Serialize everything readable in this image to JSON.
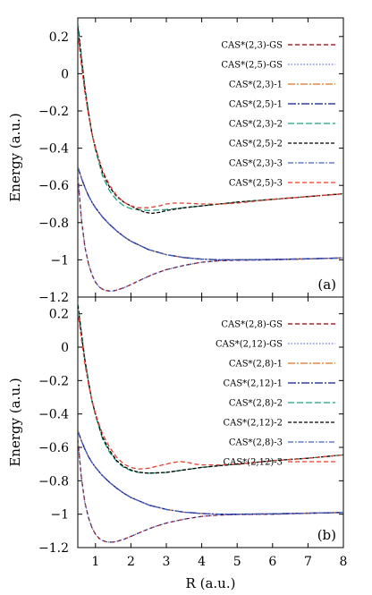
{
  "chart_data": [
    {
      "type": "line",
      "panel_label": "(a)",
      "xlabel": "",
      "ylabel": "Energy (a.u.)",
      "xlim": [
        0.5,
        8
      ],
      "ylim": [
        -1.2,
        0.3
      ],
      "xticks": [],
      "yticks": [
        {
          "value": 0.2,
          "label": "0.2"
        },
        {
          "value": 0,
          "label": "0"
        },
        {
          "value": -0.2,
          "label": "−0.2"
        },
        {
          "value": -0.4,
          "label": "−0.4"
        },
        {
          "value": -0.6,
          "label": "−0.6"
        },
        {
          "value": -0.8,
          "label": "−0.8"
        },
        {
          "value": -1.0,
          "label": "−1"
        },
        {
          "value": -1.2,
          "label": "−1.2"
        }
      ],
      "legend_position": "top-right",
      "series": [
        {
          "name": "CAS*(2,3)-GS",
          "color": "#8b0000",
          "dash": "5,3",
          "x": [
            0.5,
            0.6,
            0.7,
            0.8,
            0.9,
            1.0,
            1.1,
            1.2,
            1.3,
            1.4,
            1.5,
            1.6,
            1.8,
            2.0,
            2.2,
            2.4,
            2.6,
            2.8,
            3.0,
            3.5,
            4.0,
            4.5,
            5.0,
            5.5,
            6.0,
            7.0,
            8.0
          ],
          "y": [
            -0.55,
            -0.78,
            -0.93,
            -1.02,
            -1.08,
            -1.12,
            -1.145,
            -1.158,
            -1.165,
            -1.168,
            -1.167,
            -1.163,
            -1.15,
            -1.133,
            -1.115,
            -1.097,
            -1.08,
            -1.066,
            -1.053,
            -1.03,
            -1.013,
            -1.005,
            -1.002,
            -1.001,
            -1.0,
            -0.995,
            -0.99
          ]
        },
        {
          "name": "CAS*(2,5)-GS",
          "color": "#5b6fd6",
          "dash": "1.5,2",
          "x": [
            0.5,
            0.6,
            0.7,
            0.8,
            0.9,
            1.0,
            1.1,
            1.2,
            1.3,
            1.4,
            1.5,
            1.6,
            1.8,
            2.0,
            2.2,
            2.4,
            2.6,
            2.8,
            3.0,
            3.5,
            4.0,
            4.5,
            5.0,
            5.5,
            6.0,
            7.0,
            8.0
          ],
          "y": [
            -0.55,
            -0.78,
            -0.93,
            -1.02,
            -1.08,
            -1.12,
            -1.145,
            -1.158,
            -1.165,
            -1.168,
            -1.167,
            -1.163,
            -1.15,
            -1.133,
            -1.115,
            -1.097,
            -1.08,
            -1.066,
            -1.053,
            -1.03,
            -1.013,
            -1.005,
            -1.002,
            -1.001,
            -1.0,
            -0.995,
            -0.99
          ]
        },
        {
          "name": "CAS*(2,3)-1",
          "color": "#e07020",
          "dash": "8,2,2,2",
          "x": [
            0.5,
            0.6,
            0.7,
            0.8,
            0.9,
            1.0,
            1.2,
            1.4,
            1.6,
            1.8,
            2.0,
            2.5,
            3.0,
            3.5,
            4.0,
            4.5,
            5.0,
            6.0,
            7.0,
            8.0
          ],
          "y": [
            -0.5,
            -0.56,
            -0.61,
            -0.655,
            -0.69,
            -0.72,
            -0.77,
            -0.81,
            -0.845,
            -0.875,
            -0.9,
            -0.945,
            -0.972,
            -0.988,
            -0.996,
            -1.0,
            -1.0,
            -0.998,
            -0.994,
            -0.99
          ]
        },
        {
          "name": "CAS*(2,5)-1",
          "color": "#0a1a8a",
          "dash": "9,2,2,2",
          "x": [
            0.5,
            0.6,
            0.7,
            0.8,
            0.9,
            1.0,
            1.2,
            1.4,
            1.6,
            1.8,
            2.0,
            2.5,
            3.0,
            3.5,
            4.0,
            4.5,
            5.0,
            6.0,
            7.0,
            8.0
          ],
          "y": [
            -0.5,
            -0.56,
            -0.61,
            -0.655,
            -0.69,
            -0.72,
            -0.77,
            -0.81,
            -0.845,
            -0.875,
            -0.9,
            -0.945,
            -0.972,
            -0.988,
            -0.996,
            -1.0,
            -1.0,
            -0.998,
            -0.994,
            -0.99
          ]
        },
        {
          "name": "CAS*(2,3)-2",
          "color": "#20a080",
          "dash": "7,3",
          "x": [
            0.5,
            0.6,
            0.7,
            0.8,
            0.9,
            1.0,
            1.2,
            1.4,
            1.6,
            1.8,
            2.0,
            2.2,
            2.5,
            3.0,
            3.5,
            4.0,
            4.5,
            5.0,
            6.0,
            7.0,
            8.0
          ],
          "y": [
            0.28,
            0.1,
            -0.07,
            -0.2,
            -0.32,
            -0.41,
            -0.55,
            -0.63,
            -0.68,
            -0.71,
            -0.725,
            -0.73,
            -0.735,
            -0.73,
            -0.72,
            -0.71,
            -0.7,
            -0.69,
            -0.675,
            -0.66,
            -0.645
          ]
        },
        {
          "name": "CAS*(2,5)-2",
          "color": "#000000",
          "dash": "4,2",
          "x": [
            0.5,
            0.6,
            0.7,
            0.8,
            0.9,
            1.0,
            1.2,
            1.4,
            1.6,
            1.8,
            2.0,
            2.2,
            2.4,
            2.6,
            2.8,
            3.0,
            3.5,
            4.0,
            4.5,
            5.0,
            6.0,
            7.0,
            8.0
          ],
          "y": [
            0.25,
            0.08,
            -0.08,
            -0.21,
            -0.32,
            -0.4,
            -0.53,
            -0.61,
            -0.66,
            -0.69,
            -0.71,
            -0.73,
            -0.745,
            -0.75,
            -0.745,
            -0.735,
            -0.72,
            -0.71,
            -0.7,
            -0.69,
            -0.675,
            -0.66,
            -0.645
          ]
        },
        {
          "name": "CAS*(2,3)-3",
          "color": "#4060c0",
          "dash": "6,2,1.5,2",
          "x": [
            0.5,
            0.6,
            0.7,
            0.8,
            0.9,
            1.0,
            1.2,
            1.4,
            1.6,
            1.8,
            2.0,
            2.5,
            3.0,
            3.5,
            4.0,
            4.5,
            5.0,
            6.0,
            7.0,
            8.0
          ],
          "y": [
            -0.5,
            -0.56,
            -0.61,
            -0.655,
            -0.69,
            -0.72,
            -0.77,
            -0.81,
            -0.845,
            -0.875,
            -0.9,
            -0.945,
            -0.972,
            -0.988,
            -0.996,
            -1.0,
            -1.0,
            -0.998,
            -0.994,
            -0.99
          ]
        },
        {
          "name": "CAS*(2,5)-3",
          "color": "#e04030",
          "dash": "5,3",
          "x": [
            0.5,
            0.6,
            0.7,
            0.8,
            0.9,
            1.0,
            1.2,
            1.4,
            1.6,
            1.8,
            2.0,
            2.2,
            2.5,
            2.8,
            3.0,
            3.2,
            3.5,
            4.0,
            4.5,
            5.0,
            6.0,
            7.0,
            8.0
          ],
          "y": [
            0.22,
            0.05,
            -0.1,
            -0.22,
            -0.32,
            -0.4,
            -0.52,
            -0.6,
            -0.655,
            -0.69,
            -0.71,
            -0.72,
            -0.72,
            -0.71,
            -0.7,
            -0.695,
            -0.695,
            -0.7,
            -0.7,
            -0.695,
            -0.675,
            -0.66,
            -0.645
          ]
        }
      ]
    },
    {
      "type": "line",
      "panel_label": "(b)",
      "xlabel": "R (a.u.)",
      "ylabel": "Energy (a.u.)",
      "xlim": [
        0.5,
        8
      ],
      "ylim": [
        -1.2,
        0.3
      ],
      "xticks": [
        {
          "value": 1,
          "label": "1"
        },
        {
          "value": 2,
          "label": "2"
        },
        {
          "value": 3,
          "label": "3"
        },
        {
          "value": 4,
          "label": "4"
        },
        {
          "value": 5,
          "label": "5"
        },
        {
          "value": 6,
          "label": "6"
        },
        {
          "value": 7,
          "label": "7"
        },
        {
          "value": 8,
          "label": "8"
        }
      ],
      "yticks": [
        {
          "value": 0.2,
          "label": "0.2"
        },
        {
          "value": 0,
          "label": "0"
        },
        {
          "value": -0.2,
          "label": "−0.2"
        },
        {
          "value": -0.4,
          "label": "−0.4"
        },
        {
          "value": -0.6,
          "label": "−0.6"
        },
        {
          "value": -0.8,
          "label": "−0.8"
        },
        {
          "value": -1.0,
          "label": "−1"
        },
        {
          "value": -1.2,
          "label": "−1.2"
        }
      ],
      "legend_position": "top-right",
      "series": [
        {
          "name": "CAS*(2,8)-GS",
          "color": "#8b0000",
          "dash": "5,3",
          "x": [
            0.5,
            0.6,
            0.7,
            0.8,
            0.9,
            1.0,
            1.1,
            1.2,
            1.3,
            1.4,
            1.5,
            1.6,
            1.8,
            2.0,
            2.2,
            2.4,
            2.6,
            2.8,
            3.0,
            3.5,
            4.0,
            4.5,
            5.0,
            5.5,
            6.0,
            7.0,
            8.0
          ],
          "y": [
            -0.55,
            -0.78,
            -0.93,
            -1.02,
            -1.08,
            -1.12,
            -1.145,
            -1.158,
            -1.165,
            -1.168,
            -1.167,
            -1.163,
            -1.15,
            -1.133,
            -1.115,
            -1.097,
            -1.08,
            -1.066,
            -1.053,
            -1.03,
            -1.013,
            -1.005,
            -1.002,
            -1.001,
            -1.0,
            -0.995,
            -0.99
          ]
        },
        {
          "name": "CAS*(2,12)-GS",
          "color": "#5b6fd6",
          "dash": "1.5,2",
          "x": [
            0.5,
            0.6,
            0.7,
            0.8,
            0.9,
            1.0,
            1.1,
            1.2,
            1.3,
            1.4,
            1.5,
            1.6,
            1.8,
            2.0,
            2.2,
            2.4,
            2.6,
            2.8,
            3.0,
            3.5,
            4.0,
            4.5,
            5.0,
            5.5,
            6.0,
            7.0,
            8.0
          ],
          "y": [
            -0.55,
            -0.78,
            -0.93,
            -1.02,
            -1.08,
            -1.12,
            -1.145,
            -1.158,
            -1.165,
            -1.168,
            -1.167,
            -1.163,
            -1.15,
            -1.133,
            -1.115,
            -1.097,
            -1.08,
            -1.066,
            -1.053,
            -1.03,
            -1.013,
            -1.005,
            -1.002,
            -1.001,
            -1.0,
            -0.995,
            -0.99
          ]
        },
        {
          "name": "CAS*(2,8)-1",
          "color": "#e07020",
          "dash": "8,2,2,2",
          "x": [
            0.5,
            0.6,
            0.7,
            0.8,
            0.9,
            1.0,
            1.2,
            1.4,
            1.6,
            1.8,
            2.0,
            2.5,
            3.0,
            3.5,
            4.0,
            4.5,
            5.0,
            6.0,
            7.0,
            8.0
          ],
          "y": [
            -0.5,
            -0.56,
            -0.61,
            -0.655,
            -0.69,
            -0.72,
            -0.77,
            -0.81,
            -0.845,
            -0.875,
            -0.9,
            -0.945,
            -0.972,
            -0.988,
            -0.996,
            -1.0,
            -1.0,
            -0.998,
            -0.994,
            -0.99
          ]
        },
        {
          "name": "CAS*(2,12)-1",
          "color": "#0a1a8a",
          "dash": "9,2,2,2",
          "x": [
            0.5,
            0.6,
            0.7,
            0.8,
            0.9,
            1.0,
            1.2,
            1.4,
            1.6,
            1.8,
            2.0,
            2.5,
            3.0,
            3.5,
            4.0,
            4.5,
            5.0,
            6.0,
            7.0,
            8.0
          ],
          "y": [
            -0.5,
            -0.56,
            -0.61,
            -0.655,
            -0.69,
            -0.72,
            -0.77,
            -0.81,
            -0.845,
            -0.875,
            -0.9,
            -0.945,
            -0.972,
            -0.988,
            -0.996,
            -1.0,
            -1.0,
            -0.998,
            -0.994,
            -0.99
          ]
        },
        {
          "name": "CAS*(2,8)-2",
          "color": "#20a080",
          "dash": "7,3",
          "x": [
            0.5,
            0.6,
            0.7,
            0.8,
            0.9,
            1.0,
            1.2,
            1.4,
            1.6,
            1.8,
            2.0,
            2.2,
            2.5,
            3.0,
            3.5,
            4.0,
            4.5,
            5.0,
            6.0,
            7.0,
            8.0
          ],
          "y": [
            0.27,
            0.09,
            -0.07,
            -0.2,
            -0.32,
            -0.41,
            -0.55,
            -0.63,
            -0.685,
            -0.72,
            -0.74,
            -0.75,
            -0.755,
            -0.75,
            -0.735,
            -0.72,
            -0.71,
            -0.7,
            -0.68,
            -0.665,
            -0.645
          ]
        },
        {
          "name": "CAS*(2,12)-2",
          "color": "#000000",
          "dash": "4,2",
          "x": [
            0.5,
            0.6,
            0.7,
            0.8,
            0.9,
            1.0,
            1.2,
            1.4,
            1.6,
            1.8,
            2.0,
            2.2,
            2.5,
            3.0,
            3.5,
            4.0,
            4.5,
            5.0,
            6.0,
            7.0,
            8.0
          ],
          "y": [
            0.25,
            0.08,
            -0.08,
            -0.21,
            -0.32,
            -0.4,
            -0.54,
            -0.62,
            -0.68,
            -0.715,
            -0.735,
            -0.748,
            -0.755,
            -0.75,
            -0.735,
            -0.72,
            -0.71,
            -0.7,
            -0.68,
            -0.665,
            -0.645
          ]
        },
        {
          "name": "CAS*(2,8)-3",
          "color": "#4060c0",
          "dash": "6,2,1.5,2",
          "x": [
            0.5,
            0.6,
            0.7,
            0.8,
            0.9,
            1.0,
            1.2,
            1.4,
            1.6,
            1.8,
            2.0,
            2.5,
            3.0,
            3.5,
            4.0,
            4.5,
            5.0,
            6.0,
            7.0,
            8.0
          ],
          "y": [
            -0.5,
            -0.56,
            -0.61,
            -0.655,
            -0.69,
            -0.72,
            -0.77,
            -0.81,
            -0.845,
            -0.875,
            -0.9,
            -0.945,
            -0.972,
            -0.988,
            -0.996,
            -1.0,
            -1.0,
            -0.998,
            -0.994,
            -0.99
          ]
        },
        {
          "name": "CAS*(2,12)-3",
          "color": "#e04030",
          "dash": "5,3",
          "x": [
            0.5,
            0.6,
            0.7,
            0.8,
            0.9,
            1.0,
            1.2,
            1.4,
            1.6,
            1.8,
            2.0,
            2.2,
            2.5,
            2.8,
            3.0,
            3.2,
            3.4,
            3.6,
            3.8,
            4.0,
            4.5,
            5.0,
            6.0,
            7.0,
            8.0
          ],
          "y": [
            0.22,
            0.05,
            -0.1,
            -0.22,
            -0.32,
            -0.4,
            -0.52,
            -0.6,
            -0.66,
            -0.7,
            -0.72,
            -0.73,
            -0.725,
            -0.71,
            -0.7,
            -0.69,
            -0.685,
            -0.69,
            -0.7,
            -0.705,
            -0.705,
            -0.7,
            -0.68,
            -0.665,
            -0.645
          ]
        }
      ]
    }
  ]
}
